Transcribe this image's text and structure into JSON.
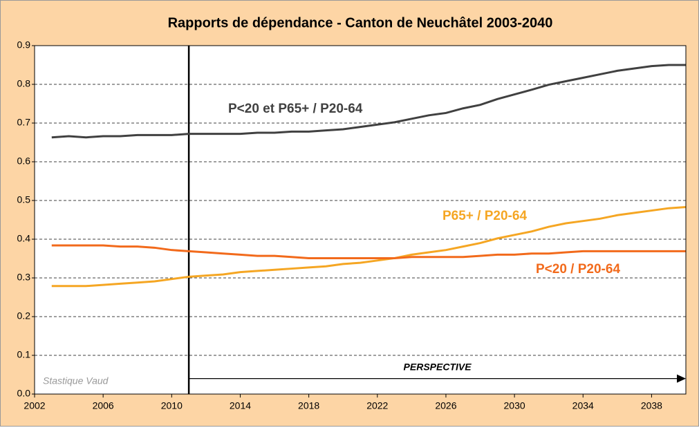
{
  "chart_data": {
    "type": "line",
    "title": "Rapports de dépendance - Canton de Neuchâtel 2003-2040",
    "x": [
      2003,
      2004,
      2005,
      2006,
      2007,
      2008,
      2009,
      2010,
      2011,
      2012,
      2013,
      2014,
      2015,
      2016,
      2017,
      2018,
      2019,
      2020,
      2021,
      2022,
      2023,
      2024,
      2025,
      2026,
      2027,
      2028,
      2029,
      2030,
      2031,
      2032,
      2033,
      2034,
      2035,
      2036,
      2037,
      2038,
      2039,
      2040
    ],
    "series": [
      {
        "name": "P<20 et P65+ / P20-64",
        "color": "#404040",
        "values": [
          0.663,
          0.666,
          0.663,
          0.666,
          0.666,
          0.669,
          0.669,
          0.669,
          0.672,
          0.672,
          0.672,
          0.672,
          0.675,
          0.675,
          0.678,
          0.678,
          0.681,
          0.684,
          0.69,
          0.696,
          0.702,
          0.711,
          0.72,
          0.726,
          0.738,
          0.747,
          0.762,
          0.774,
          0.786,
          0.799,
          0.808,
          0.817,
          0.826,
          0.835,
          0.841,
          0.847,
          0.85,
          0.85
        ]
      },
      {
        "name": "P65+ / P20-64",
        "color": "#f5a623",
        "values": [
          0.279,
          0.279,
          0.279,
          0.282,
          0.285,
          0.288,
          0.291,
          0.297,
          0.303,
          0.306,
          0.309,
          0.315,
          0.318,
          0.321,
          0.324,
          0.327,
          0.33,
          0.336,
          0.339,
          0.345,
          0.351,
          0.36,
          0.366,
          0.372,
          0.381,
          0.39,
          0.402,
          0.411,
          0.42,
          0.432,
          0.441,
          0.447,
          0.453,
          0.462,
          0.468,
          0.474,
          0.48,
          0.483
        ]
      },
      {
        "name": "P<20 / P20-64",
        "color": "#f26a1b",
        "values": [
          0.384,
          0.384,
          0.384,
          0.384,
          0.381,
          0.381,
          0.378,
          0.372,
          0.369,
          0.366,
          0.363,
          0.36,
          0.357,
          0.357,
          0.354,
          0.351,
          0.351,
          0.351,
          0.351,
          0.351,
          0.351,
          0.354,
          0.354,
          0.354,
          0.354,
          0.357,
          0.36,
          0.36,
          0.363,
          0.363,
          0.366,
          0.369,
          0.369,
          0.369,
          0.369,
          0.369,
          0.369,
          0.369
        ]
      }
    ],
    "xlim": [
      2002,
      2040
    ],
    "xticks": [
      2002,
      2006,
      2010,
      2014,
      2018,
      2022,
      2026,
      2030,
      2034,
      2038
    ],
    "ylim": [
      0,
      0.9
    ],
    "yticks": [
      {
        "value": 0,
        "label": "0.0"
      },
      0.1,
      0.2,
      0.3,
      0.4,
      0.5,
      0.6,
      0.7,
      0.8,
      0.9
    ],
    "grid": true,
    "annotations": [
      {
        "text": "PERSPECTIVE",
        "x_start": 2011,
        "x_end": 2040,
        "y": 0.04
      },
      {
        "text": "Stastique Vaud"
      }
    ]
  }
}
